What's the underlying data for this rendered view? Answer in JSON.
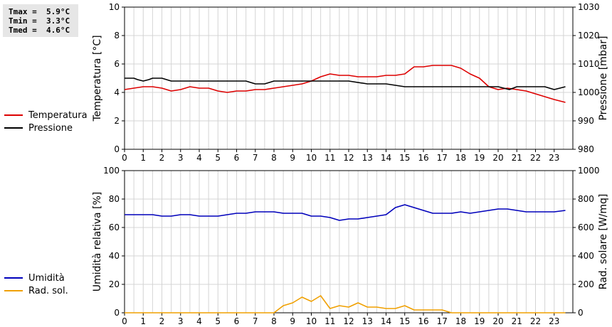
{
  "stats": {
    "tmax_label": "Tmax =",
    "tmax_value": "5.9°C",
    "tmin_label": "Tmin =",
    "tmin_value": "3.3°C",
    "tmed_label": "Tmed =",
    "tmed_value": "4.6°C"
  },
  "chart_data": [
    {
      "type": "line",
      "grid": true,
      "legend_position": "left",
      "x_ticks": [
        "0",
        "1",
        "2",
        "3",
        "4",
        "5",
        "6",
        "7",
        "8",
        "9",
        "10",
        "11",
        "12",
        "13",
        "14",
        "15",
        "16",
        "17",
        "18",
        "19",
        "20",
        "21",
        "22",
        "23"
      ],
      "xlim": [
        0,
        24
      ],
      "y_left": {
        "label": "Temperatura [°C]",
        "lim": [
          0,
          10
        ],
        "ticks": [
          0,
          2,
          4,
          6,
          8,
          10
        ]
      },
      "y_right": {
        "label": "Pressione [mbar]",
        "lim": [
          980,
          1030
        ],
        "ticks": [
          980,
          990,
          1000,
          1010,
          1020,
          1030
        ]
      },
      "series": [
        {
          "name": "Temperatura",
          "axis": "left",
          "color": "#dd0000",
          "x": [
            0,
            0.5,
            1,
            1.5,
            2,
            2.5,
            3,
            3.5,
            4,
            4.5,
            5,
            5.5,
            6,
            6.5,
            7,
            7.5,
            8,
            8.5,
            9,
            9.5,
            10,
            10.5,
            11,
            11.5,
            12,
            12.5,
            13,
            13.5,
            14,
            14.5,
            15,
            15.5,
            16,
            16.5,
            17,
            17.5,
            18,
            18.5,
            19,
            19.5,
            20,
            20.5,
            21,
            21.5,
            22,
            22.5,
            23,
            23.6
          ],
          "y": [
            4.2,
            4.3,
            4.4,
            4.4,
            4.3,
            4.1,
            4.2,
            4.4,
            4.3,
            4.3,
            4.1,
            4.0,
            4.1,
            4.1,
            4.2,
            4.2,
            4.3,
            4.4,
            4.5,
            4.6,
            4.8,
            5.1,
            5.3,
            5.2,
            5.2,
            5.1,
            5.1,
            5.1,
            5.2,
            5.2,
            5.3,
            5.8,
            5.8,
            5.9,
            5.9,
            5.9,
            5.7,
            5.3,
            5.0,
            4.4,
            4.2,
            4.3,
            4.2,
            4.1,
            3.9,
            3.7,
            3.5,
            3.3
          ]
        },
        {
          "name": "Pressione",
          "axis": "right",
          "color": "#000000",
          "x": [
            0,
            0.5,
            0.7,
            1,
            1.3,
            1.5,
            2,
            2.5,
            3,
            4,
            5,
            6,
            6.5,
            7,
            7.5,
            8,
            9,
            10,
            11,
            12,
            13,
            14,
            15,
            16,
            17,
            18,
            19,
            20,
            20.3,
            20.6,
            21,
            22,
            22.5,
            23,
            23.6
          ],
          "y": [
            1005,
            1005,
            1004.5,
            1004,
            1004.5,
            1005,
            1005,
            1004,
            1004,
            1004,
            1004,
            1004,
            1004,
            1003,
            1003,
            1004,
            1004,
            1004,
            1004,
            1004,
            1003,
            1003,
            1002,
            1002,
            1002,
            1002,
            1002,
            1002,
            1001.5,
            1001,
            1002,
            1002,
            1002,
            1001,
            1002
          ]
        }
      ]
    },
    {
      "type": "line",
      "grid": true,
      "legend_position": "left",
      "x_ticks": [
        "0",
        "1",
        "2",
        "3",
        "4",
        "5",
        "6",
        "7",
        "8",
        "9",
        "10",
        "11",
        "12",
        "13",
        "14",
        "15",
        "16",
        "17",
        "18",
        "19",
        "20",
        "21",
        "22",
        "23"
      ],
      "xlim": [
        0,
        24
      ],
      "y_left": {
        "label": "Umidità relativa [%]",
        "lim": [
          0,
          100
        ],
        "ticks": [
          0,
          20,
          40,
          60,
          80,
          100
        ]
      },
      "y_right": {
        "label": "Rad. solare [W/mq]",
        "lim": [
          0,
          1000
        ],
        "ticks": [
          0,
          200,
          400,
          600,
          800,
          1000
        ]
      },
      "series": [
        {
          "name": "Umidità",
          "axis": "left",
          "color": "#0000bb",
          "x": [
            0,
            0.5,
            1,
            1.5,
            2,
            2.5,
            3,
            3.5,
            4,
            4.5,
            5,
            5.5,
            6,
            6.5,
            7,
            7.5,
            8,
            8.5,
            9,
            9.5,
            10,
            10.5,
            11,
            11.5,
            12,
            12.5,
            13,
            13.5,
            14,
            14.5,
            15,
            15.5,
            16,
            16.5,
            17,
            17.5,
            18,
            18.5,
            19,
            19.5,
            20,
            20.5,
            21,
            21.5,
            22,
            22.5,
            23,
            23.6
          ],
          "y": [
            69,
            69,
            69,
            69,
            68,
            68,
            69,
            69,
            68,
            68,
            68,
            69,
            70,
            70,
            71,
            71,
            71,
            70,
            70,
            70,
            68,
            68,
            67,
            65,
            66,
            66,
            67,
            68,
            69,
            74,
            76,
            74,
            72,
            70,
            70,
            70,
            71,
            70,
            71,
            72,
            73,
            73,
            72,
            71,
            71,
            71,
            71,
            72
          ]
        },
        {
          "name": "Rad. sol.",
          "axis": "right",
          "color": "#f0a000",
          "x": [
            0,
            1,
            2,
            3,
            4,
            5,
            6,
            7,
            8,
            8.5,
            9,
            9.5,
            10,
            10.5,
            11,
            11.5,
            12,
            12.5,
            13,
            13.5,
            14,
            14.5,
            15,
            15.5,
            16,
            16.5,
            17,
            17.5,
            18,
            19,
            20,
            21,
            22,
            23,
            23.6
          ],
          "y": [
            0,
            0,
            0,
            0,
            0,
            0,
            0,
            0,
            0,
            50,
            70,
            110,
            80,
            120,
            30,
            50,
            40,
            70,
            40,
            40,
            30,
            30,
            50,
            20,
            20,
            20,
            20,
            0,
            0,
            0,
            0,
            0,
            0,
            0,
            0
          ]
        }
      ]
    }
  ]
}
